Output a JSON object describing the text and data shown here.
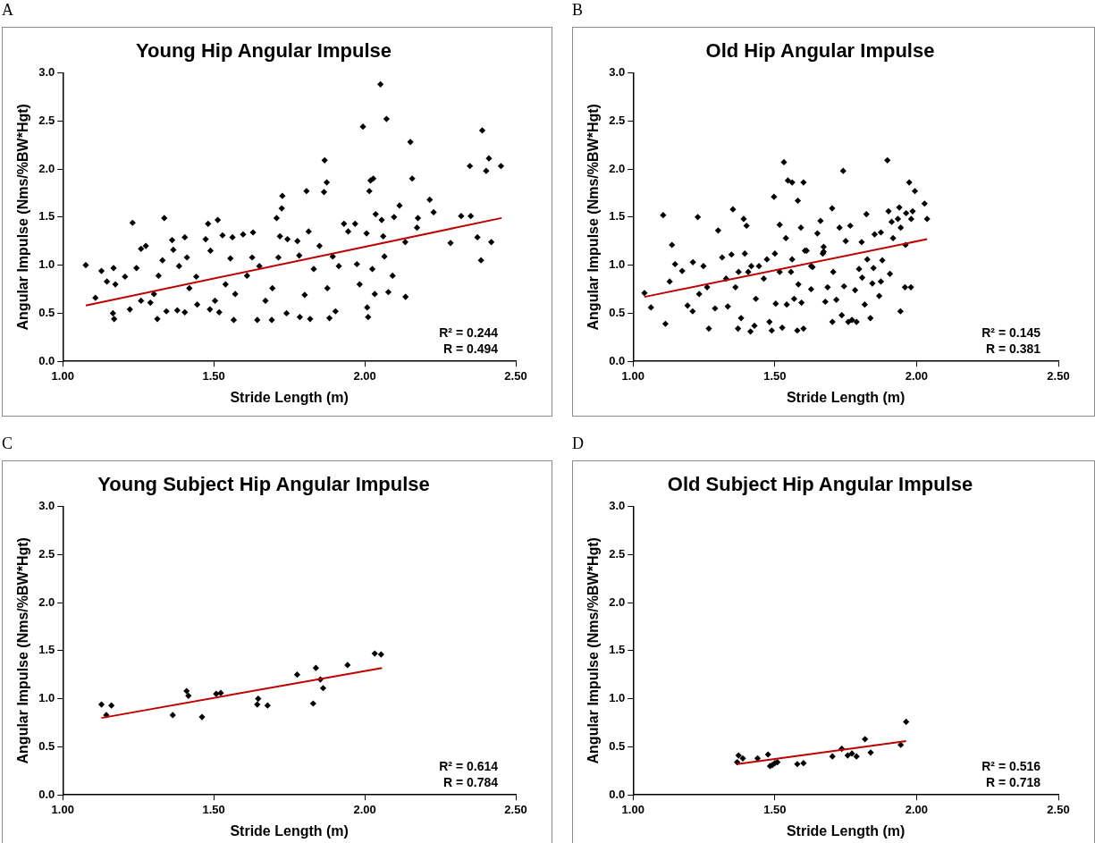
{
  "chart_data": [
    {
      "type": "scatter",
      "title": "Young Hip Angular Impulse",
      "xlabel": "Stride Length (m)",
      "ylabel": "Angular Impulse (Nms/%BW*Hgt)",
      "xlim": [
        1.0,
        2.5
      ],
      "ylim": [
        0,
        3
      ],
      "xticks": [
        {
          "value": 1,
          "label": "1.00"
        },
        {
          "value": 1.5,
          "label": "1.50"
        },
        {
          "value": 2,
          "label": "2.00"
        },
        {
          "value": 2.5,
          "label": "2.50"
        }
      ],
      "yticks": [
        {
          "value": 0,
          "label": "0.0"
        },
        {
          "value": 0.5,
          "label": "0.5"
        },
        {
          "value": 1,
          "label": "1.0"
        },
        {
          "value": 1.5,
          "label": "1.5"
        },
        {
          "value": 2,
          "label": "2.0"
        },
        {
          "value": 2.5,
          "label": "2.5"
        },
        {
          "value": 3,
          "label": "3.0"
        }
      ],
      "marker": "diamond",
      "grid": false,
      "legend": false,
      "annotations": [
        "A",
        "R² = 0.244",
        "R = 0.494"
      ],
      "series": [
        {
          "type": "scatter",
          "color": "#000000",
          "x": [
            1.076,
            1.108,
            1.128,
            1.146,
            1.166,
            1.17,
            1.168,
            1.174,
            1.206,
            1.222,
            1.231,
            1.244,
            1.259,
            1.275,
            1.259,
            1.29,
            1.302,
            1.313,
            1.317,
            1.336,
            1.33,
            1.343,
            1.362,
            1.366,
            1.379,
            1.385,
            1.404,
            1.411,
            1.404,
            1.419,
            1.442,
            1.445,
            1.473,
            1.481,
            1.489,
            1.487,
            1.504,
            1.513,
            1.518,
            1.529,
            1.539,
            1.555,
            1.562,
            1.566,
            1.571,
            1.597,
            1.61,
            1.63,
            1.627,
            1.644,
            1.651,
            1.671,
            1.692,
            1.694,
            1.708,
            1.714,
            1.719,
            1.725,
            1.727,
            1.741,
            1.744,
            1.777,
            1.783,
            1.785,
            1.801,
            1.807,
            1.819,
            1.814,
            1.831,
            1.85,
            1.867,
            1.865,
            1.874,
            1.876,
            1.883,
            1.894,
            1.903,
            1.914,
            1.931,
            1.945,
            1.968,
            1.974,
            1.983,
            1.994,
            2.006,
            2.008,
            2.011,
            2.015,
            2.019,
            2.028,
            2.025,
            2.033,
            2.036,
            2.052,
            2.056,
            2.061,
            2.065,
            2.072,
            2.078,
            2.097,
            2.092,
            2.115,
            2.134,
            2.135,
            2.151,
            2.157,
            2.173,
            2.176,
            2.215,
            2.228,
            2.284,
            2.319,
            2.348,
            2.351,
            2.373,
            2.385,
            2.389,
            2.402,
            2.411,
            2.419,
            2.451
          ],
          "values": [
            1.0,
            0.66,
            0.94,
            0.83,
            0.5,
            0.44,
            0.97,
            0.8,
            0.88,
            0.54,
            1.44,
            0.97,
            1.17,
            1.2,
            0.63,
            0.61,
            0.7,
            0.44,
            0.89,
            1.49,
            1.05,
            0.52,
            1.26,
            1.16,
            0.53,
            0.99,
            1.29,
            1.08,
            0.51,
            0.76,
            0.88,
            0.59,
            1.27,
            1.43,
            1.15,
            0.54,
            0.63,
            1.47,
            0.51,
            1.31,
            0.8,
            1.07,
            1.29,
            0.43,
            0.7,
            1.32,
            0.89,
            1.34,
            1.08,
            0.43,
            0.99,
            0.63,
            0.43,
            0.76,
            1.49,
            1.08,
            1.3,
            1.59,
            1.72,
            0.5,
            1.27,
            1.25,
            1.1,
            0.46,
            0.69,
            1.77,
            0.44,
            1.35,
            0.96,
            1.2,
            2.09,
            1.76,
            1.86,
            0.76,
            0.45,
            1.09,
            0.52,
            0.99,
            1.43,
            1.35,
            1.43,
            1.01,
            0.8,
            2.44,
            1.33,
            0.56,
            0.46,
            1.77,
            1.88,
            1.9,
            0.96,
            0.7,
            1.53,
            2.88,
            1.47,
            1.3,
            1.09,
            2.52,
            0.72,
            1.5,
            0.89,
            1.62,
            1.24,
            0.67,
            2.28,
            1.9,
            1.39,
            1.49,
            1.68,
            1.55,
            1.23,
            1.51,
            2.03,
            1.51,
            1.29,
            1.05,
            2.4,
            1.98,
            2.11,
            1.24,
            2.03
          ]
        },
        {
          "type": "line",
          "marker": "none",
          "color": "#c00000",
          "x": [
            1.076,
            2.453
          ],
          "values": [
            0.58,
            1.49
          ]
        }
      ]
    },
    {
      "type": "scatter",
      "title": "Old Hip Angular Impulse",
      "xlabel": "Stride Length (m)",
      "ylabel": "Angular Impulse (Nms/%BW*Hgt)",
      "xlim": [
        1.0,
        2.5
      ],
      "ylim": [
        0,
        3
      ],
      "xticks": [
        {
          "value": 1,
          "label": "1.00"
        },
        {
          "value": 1.5,
          "label": "1.50"
        },
        {
          "value": 2,
          "label": "2.00"
        },
        {
          "value": 2.5,
          "label": "2.50"
        }
      ],
      "yticks": [
        {
          "value": 0,
          "label": "0.0"
        },
        {
          "value": 0.5,
          "label": "0.5"
        },
        {
          "value": 1,
          "label": "1.0"
        },
        {
          "value": 1.5,
          "label": "1.5"
        },
        {
          "value": 2,
          "label": "2.0"
        },
        {
          "value": 2.5,
          "label": "2.5"
        },
        {
          "value": 3,
          "label": "3.0"
        }
      ],
      "marker": "diamond",
      "grid": false,
      "legend": false,
      "annotations": [
        "B",
        "R² = 0.145",
        "R = 0.381"
      ],
      "series": [
        {
          "type": "scatter",
          "color": "#000000",
          "x": [
            1.04,
            1.063,
            1.106,
            1.114,
            1.129,
            1.137,
            1.148,
            1.173,
            1.192,
            1.21,
            1.228,
            1.211,
            1.233,
            1.248,
            1.267,
            1.261,
            1.289,
            1.3,
            1.314,
            1.328,
            1.334,
            1.352,
            1.347,
            1.361,
            1.37,
            1.381,
            1.39,
            1.4,
            1.394,
            1.406,
            1.414,
            1.428,
            1.433,
            1.444,
            1.461,
            1.481,
            1.489,
            1.497,
            1.5,
            1.503,
            1.517,
            1.526,
            1.532,
            1.539,
            1.542,
            1.546,
            1.561,
            1.557,
            1.568,
            1.579,
            1.581,
            1.592,
            1.594,
            1.601,
            1.601,
            1.612,
            1.628,
            1.633,
            1.65,
            1.661,
            1.669,
            1.678,
            1.686,
            1.702,
            1.703,
            1.706,
            1.717,
            1.728,
            1.736,
            1.741,
            1.744,
            1.75,
            1.759,
            1.772,
            1.766,
            1.783,
            1.788,
            1.797,
            1.806,
            1.808,
            1.817,
            1.823,
            1.826,
            1.837,
            1.844,
            1.848,
            1.852,
            1.868,
            1.874,
            1.874,
            1.879,
            1.897,
            1.901,
            1.906,
            1.912,
            1.917,
            1.934,
            1.939,
            1.944,
            1.943,
            1.961,
            1.959,
            1.963,
            1.974,
            1.98,
            1.981,
            1.986,
            1.994,
            2.028,
            2.037,
            1.561,
            1.606,
            1.672,
            1.517,
            1.472,
            1.417,
            1.372,
            1.583,
            1.628,
            1.672
          ],
          "values": [
            0.71,
            0.56,
            1.52,
            0.39,
            0.83,
            1.21,
            1.01,
            0.94,
            0.58,
            0.52,
            1.5,
            1.03,
            0.7,
            0.99,
            0.34,
            0.77,
            0.55,
            1.36,
            1.08,
            0.86,
            0.57,
            1.58,
            1.11,
            0.77,
            0.34,
            0.45,
            1.48,
            1.41,
            1.12,
            0.93,
            0.31,
            0.37,
            0.65,
            0.99,
            0.86,
            0.41,
            0.32,
            1.71,
            1.12,
            0.6,
            1.42,
            0.35,
            2.07,
            1.28,
            0.59,
            1.88,
            1.86,
            0.93,
            0.65,
            0.32,
            1.67,
            1.39,
            0.61,
            1.86,
            0.34,
            1.15,
            0.75,
            0.98,
            1.33,
            1.46,
            1.12,
            0.62,
            0.77,
            1.59,
            0.41,
            0.93,
            0.64,
            1.39,
            0.48,
            1.98,
            0.78,
            1.25,
            0.41,
            0.43,
            1.41,
            0.74,
            0.41,
            0.96,
            1.24,
            0.87,
            0.59,
            1.53,
            1.06,
            0.45,
            0.81,
            0.97,
            1.32,
            0.68,
            1.34,
            0.83,
            1.05,
            2.09,
            1.56,
            0.91,
            1.45,
            1.28,
            1.48,
            1.6,
            1.39,
            0.52,
            1.21,
            0.77,
            1.54,
            1.86,
            0.77,
            1.48,
            1.56,
            1.77,
            1.64,
            1.48,
            1.06,
            1.15,
            1.14,
            0.93,
            1.06,
            0.99,
            0.93,
            0.8,
            0.99,
            1.19
          ]
        },
        {
          "type": "line",
          "marker": "none",
          "color": "#c00000",
          "x": [
            1.04,
            2.037
          ],
          "values": [
            0.67,
            1.27
          ]
        }
      ]
    },
    {
      "type": "scatter",
      "title": "Young Subject Hip Angular Impulse",
      "xlabel": "Stride Length (m)",
      "ylabel": "Angular Impulse (Nms/%BW*Hgt)",
      "xlim": [
        1.0,
        2.5
      ],
      "ylim": [
        0,
        3
      ],
      "xticks": [
        {
          "value": 1,
          "label": "1.00"
        },
        {
          "value": 1.5,
          "label": "1.50"
        },
        {
          "value": 2,
          "label": "2.00"
        },
        {
          "value": 2.5,
          "label": "2.50"
        }
      ],
      "yticks": [
        {
          "value": 0,
          "label": "0.0"
        },
        {
          "value": 0.5,
          "label": "0.5"
        },
        {
          "value": 1,
          "label": "1.0"
        },
        {
          "value": 1.5,
          "label": "1.5"
        },
        {
          "value": 2,
          "label": "2.0"
        },
        {
          "value": 2.5,
          "label": "2.5"
        },
        {
          "value": 3,
          "label": "3.0"
        }
      ],
      "marker": "diamond",
      "grid": false,
      "legend": false,
      "annotations": [
        "C",
        "R² = 0.614",
        "R = 0.784"
      ],
      "series": [
        {
          "type": "scatter",
          "color": "#000000",
          "x": [
            1.128,
            1.144,
            1.161,
            1.364,
            1.41,
            1.416,
            1.461,
            1.508,
            1.523,
            1.647,
            1.644,
            1.678,
            1.776,
            1.829,
            1.838,
            1.853,
            1.862,
            1.943,
            2.033,
            2.054
          ],
          "values": [
            0.94,
            0.83,
            0.93,
            0.83,
            1.08,
            1.03,
            0.81,
            1.05,
            1.06,
            1.0,
            0.94,
            0.93,
            1.25,
            0.95,
            1.32,
            1.2,
            1.11,
            1.35,
            1.47,
            1.46
          ]
        },
        {
          "type": "line",
          "marker": "none",
          "color": "#c00000",
          "x": [
            1.128,
            2.057
          ],
          "values": [
            0.8,
            1.32
          ]
        }
      ]
    },
    {
      "type": "scatter",
      "title": "Old Subject Hip Angular Impulse",
      "xlabel": "Stride Length (m)",
      "ylabel": "Angular Impulse (Nms/%BW*Hgt)",
      "xlim": [
        1.0,
        2.5
      ],
      "ylim": [
        0,
        3
      ],
      "xticks": [
        {
          "value": 1,
          "label": "1.00"
        },
        {
          "value": 1.5,
          "label": "1.50"
        },
        {
          "value": 2,
          "label": "2.00"
        },
        {
          "value": 2.5,
          "label": "2.50"
        }
      ],
      "yticks": [
        {
          "value": 0,
          "label": "0.0"
        },
        {
          "value": 0.5,
          "label": "0.5"
        },
        {
          "value": 1,
          "label": "1.0"
        },
        {
          "value": 1.5,
          "label": "1.5"
        },
        {
          "value": 2,
          "label": "2.0"
        },
        {
          "value": 2.5,
          "label": "2.5"
        },
        {
          "value": 3,
          "label": "3.0"
        }
      ],
      "marker": "diamond",
      "grid": false,
      "legend": false,
      "annotations": [
        "D",
        "R² = 0.516",
        "R = 0.718"
      ],
      "series": [
        {
          "type": "scatter",
          "color": "#000000",
          "x": [
            1.367,
            1.372,
            1.387,
            1.439,
            1.476,
            1.483,
            1.491,
            1.5,
            1.509,
            1.579,
            1.601,
            1.703,
            1.736,
            1.757,
            1.772,
            1.788,
            1.818,
            1.838,
            1.944,
            1.963
          ],
          "values": [
            0.34,
            0.41,
            0.38,
            0.38,
            0.42,
            0.3,
            0.31,
            0.33,
            0.34,
            0.32,
            0.33,
            0.4,
            0.48,
            0.41,
            0.43,
            0.4,
            0.58,
            0.44,
            0.52,
            0.76
          ]
        },
        {
          "type": "line",
          "marker": "none",
          "color": "#c00000",
          "x": [
            1.367,
            1.963
          ],
          "values": [
            0.32,
            0.56
          ]
        }
      ]
    }
  ]
}
